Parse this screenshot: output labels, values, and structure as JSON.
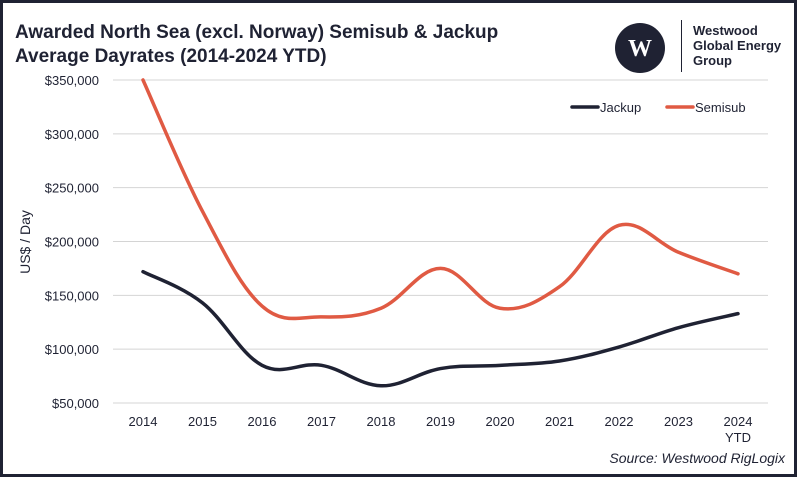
{
  "header": {
    "title_line1": "Awarded North Sea (excl. Norway) Semisub & Jackup",
    "title_line2": "Average Dayrates (2014-2024 YTD)"
  },
  "logo": {
    "mark_letter": "W",
    "line1": "Westwood",
    "line2": "Global Energy",
    "line3": "Group"
  },
  "source": "Source: Westwood RigLogix",
  "colors": {
    "jackup": "#1f2233",
    "semisub": "#e05a43",
    "grid": "#d4d4d4",
    "text": "#1f2233",
    "frame": "#1f2233"
  },
  "chart_data": {
    "type": "line",
    "title": "Awarded North Sea (excl. Norway) Semisub & Jackup Average Dayrates (2014-2024 YTD)",
    "ylabel": "US$ / Day",
    "xlabel": "",
    "categories": [
      "2014",
      "2015",
      "2016",
      "2017",
      "2018",
      "2019",
      "2020",
      "2021",
      "2022",
      "2023",
      "2024\nYTD"
    ],
    "ylim": [
      50000,
      350000
    ],
    "yticks": [
      50000,
      100000,
      150000,
      200000,
      250000,
      300000,
      350000
    ],
    "ytick_labels": [
      "$50,000",
      "$100,000",
      "$150,000",
      "$200,000",
      "$250,000",
      "$300,000",
      "$350,000"
    ],
    "grid": "horizontal",
    "legend_position": "top-right",
    "smooth": true,
    "series": [
      {
        "name": "Jackup",
        "color": "#1f2233",
        "values": [
          172000,
          143000,
          85000,
          85000,
          66000,
          82000,
          85000,
          89000,
          102000,
          120000,
          133000
        ]
      },
      {
        "name": "Semisub",
        "color": "#e05a43",
        "values": [
          350000,
          228000,
          140000,
          130000,
          138000,
          175000,
          138000,
          158000,
          215000,
          190000,
          170000
        ]
      }
    ]
  }
}
